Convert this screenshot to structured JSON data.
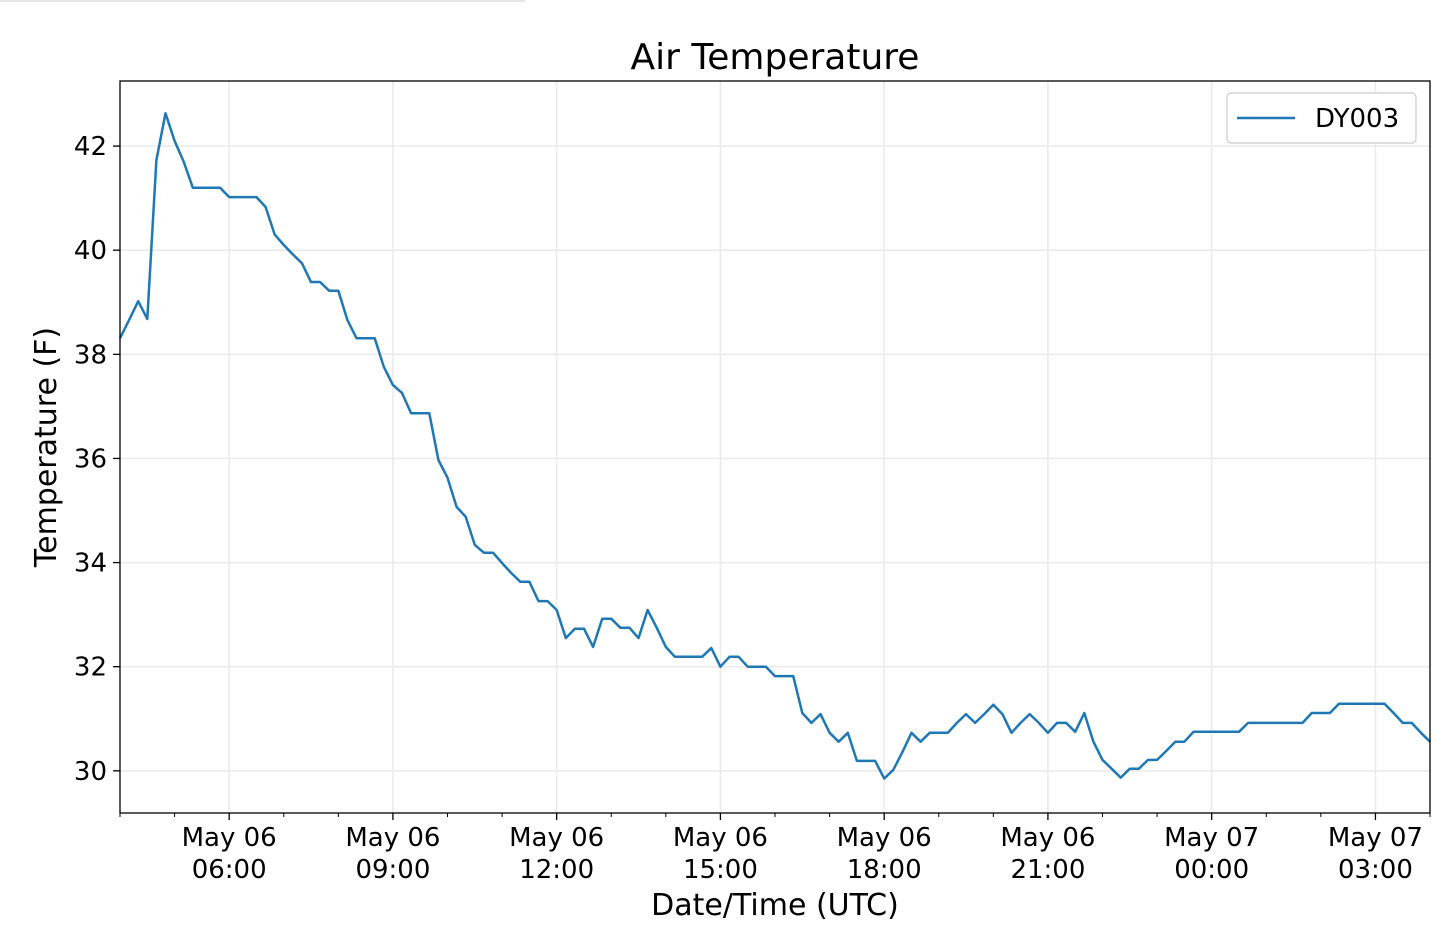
{
  "chart_data": {
    "type": "line",
    "title": "Air Temperature",
    "xlabel": "Date/Time (UTC)",
    "ylabel": "Temperature (F)",
    "x_unit": "hours since May 06 00:00 UTC",
    "x_start": 4,
    "x_step_minutes": 10,
    "xlim": [
      4,
      28
    ],
    "ylim": [
      29.19,
      43.25
    ],
    "grid": true,
    "legend_position": "top-right",
    "yticks": [
      30,
      32,
      34,
      36,
      38,
      40,
      42
    ],
    "ytick_labels": [
      "30",
      "32",
      "34",
      "36",
      "38",
      "40",
      "42"
    ],
    "xticks": [
      {
        "value": 6,
        "line1": "May 06",
        "line2": "06:00"
      },
      {
        "value": 9,
        "line1": "May 06",
        "line2": "09:00"
      },
      {
        "value": 12,
        "line1": "May 06",
        "line2": "12:00"
      },
      {
        "value": 15,
        "line1": "May 06",
        "line2": "15:00"
      },
      {
        "value": 18,
        "line1": "May 06",
        "line2": "18:00"
      },
      {
        "value": 21,
        "line1": "May 06",
        "line2": "21:00"
      },
      {
        "value": 24,
        "line1": "May 07",
        "line2": "00:00"
      },
      {
        "value": 27,
        "line1": "May 07",
        "line2": "03:00"
      }
    ],
    "series": [
      {
        "name": "DY003",
        "color": "#1f77b4",
        "values": [
          38.31,
          38.66,
          39.02,
          38.68,
          41.73,
          42.63,
          42.1,
          41.7,
          41.2,
          41.2,
          41.2,
          41.2,
          41.02,
          41.02,
          41.02,
          41.02,
          40.83,
          40.3,
          40.1,
          39.92,
          39.75,
          39.39,
          39.39,
          39.22,
          39.22,
          38.66,
          38.31,
          38.31,
          38.31,
          37.76,
          37.41,
          37.26,
          36.87,
          36.87,
          36.87,
          35.97,
          35.63,
          35.07,
          34.88,
          34.34,
          34.19,
          34.19,
          33.99,
          33.8,
          33.63,
          33.63,
          33.26,
          33.26,
          33.09,
          32.55,
          32.73,
          32.73,
          32.38,
          32.92,
          32.92,
          32.75,
          32.75,
          32.55,
          33.09,
          32.75,
          32.38,
          32.19,
          32.19,
          32.19,
          32.19,
          32.36,
          32.0,
          32.19,
          32.19,
          32.0,
          32.0,
          32.0,
          31.82,
          31.82,
          31.82,
          31.11,
          30.92,
          31.09,
          30.73,
          30.56,
          30.73,
          30.19,
          30.19,
          30.19,
          29.85,
          30.02,
          30.36,
          30.73,
          30.56,
          30.73,
          30.73,
          30.73,
          30.92,
          31.09,
          30.92,
          31.09,
          31.27,
          31.09,
          30.73,
          30.92,
          31.09,
          30.92,
          30.73,
          30.92,
          30.92,
          30.75,
          31.11,
          30.56,
          30.21,
          30.04,
          29.87,
          30.04,
          30.04,
          30.21,
          30.21,
          30.38,
          30.56,
          30.56,
          30.75,
          30.75,
          30.75,
          30.75,
          30.75,
          30.75,
          30.92,
          30.92,
          30.92,
          30.92,
          30.92,
          30.92,
          30.92,
          31.11,
          31.11,
          31.11,
          31.29,
          31.29,
          31.29,
          31.29,
          31.29,
          31.29,
          31.11,
          30.92,
          30.92,
          30.73,
          30.56
        ]
      }
    ]
  }
}
